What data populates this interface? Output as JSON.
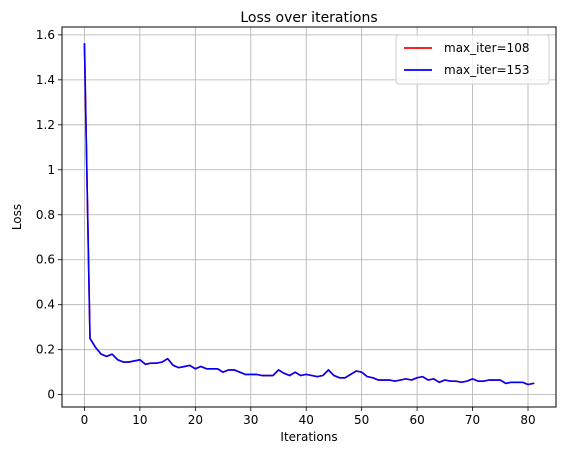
{
  "chart_data": {
    "type": "line",
    "title": "Loss over iterations",
    "xlabel": "Iterations",
    "ylabel": "Loss",
    "xlim": [
      -4.05,
      85.05
    ],
    "ylim": [
      -0.055,
      1.635
    ],
    "xticks": [
      0,
      10,
      20,
      30,
      40,
      50,
      60,
      70,
      80
    ],
    "xtick_labels": [
      "0",
      "10",
      "20",
      "30",
      "40",
      "50",
      "60",
      "70",
      "80"
    ],
    "yticks": [
      0,
      0.2,
      0.4,
      0.6,
      0.8,
      1.0,
      1.2,
      1.4,
      1.6
    ],
    "ytick_labels": [
      "0",
      "0.2",
      "0.4",
      "0.6",
      "0.8",
      "1",
      "1.2",
      "1.4",
      "1.6"
    ],
    "grid": true,
    "legend_position": "top-right",
    "series": [
      {
        "name": "max_iter=108",
        "color": "#ff0000",
        "x": [
          0,
          1,
          2,
          3,
          4,
          5,
          6,
          7,
          8,
          9,
          10,
          11,
          12,
          13,
          14,
          15,
          16,
          17,
          18,
          19,
          20,
          21,
          22,
          23,
          24,
          25,
          26,
          27,
          28,
          29,
          30,
          31,
          32,
          33,
          34,
          35,
          36,
          37,
          38,
          39,
          40,
          41,
          42,
          43,
          44,
          45,
          46,
          47,
          48,
          49,
          50,
          51,
          52,
          53,
          54,
          55,
          56,
          57,
          58,
          59,
          60,
          61,
          62,
          63,
          64,
          65,
          66,
          67,
          68,
          69,
          70,
          71,
          72,
          73,
          74,
          75,
          76,
          77,
          78,
          79,
          80,
          81
        ],
        "y": [
          1.56,
          0.25,
          0.21,
          0.18,
          0.17,
          0.18,
          0.155,
          0.145,
          0.145,
          0.15,
          0.155,
          0.135,
          0.14,
          0.14,
          0.145,
          0.16,
          0.13,
          0.12,
          0.125,
          0.13,
          0.115,
          0.125,
          0.115,
          0.115,
          0.115,
          0.1,
          0.11,
          0.11,
          0.1,
          0.09,
          0.09,
          0.09,
          0.085,
          0.085,
          0.085,
          0.11,
          0.095,
          0.085,
          0.1,
          0.085,
          0.09,
          0.085,
          0.08,
          0.085,
          0.11,
          0.085,
          0.075,
          0.075,
          0.09,
          0.105,
          0.1,
          0.08,
          0.075,
          0.065,
          0.065,
          0.065,
          0.06,
          0.065,
          0.07,
          0.065,
          0.075,
          0.08,
          0.065,
          0.07,
          0.055,
          0.065,
          0.06,
          0.06,
          0.055,
          0.06,
          0.07,
          0.06,
          0.06,
          0.065,
          0.065,
          0.065,
          0.05,
          0.055,
          0.055,
          0.055,
          0.045,
          0.05
        ]
      },
      {
        "name": "max_iter=153",
        "color": "#0000ff",
        "x": [
          0,
          1,
          2,
          3,
          4,
          5,
          6,
          7,
          8,
          9,
          10,
          11,
          12,
          13,
          14,
          15,
          16,
          17,
          18,
          19,
          20,
          21,
          22,
          23,
          24,
          25,
          26,
          27,
          28,
          29,
          30,
          31,
          32,
          33,
          34,
          35,
          36,
          37,
          38,
          39,
          40,
          41,
          42,
          43,
          44,
          45,
          46,
          47,
          48,
          49,
          50,
          51,
          52,
          53,
          54,
          55,
          56,
          57,
          58,
          59,
          60,
          61,
          62,
          63,
          64,
          65,
          66,
          67,
          68,
          69,
          70,
          71,
          72,
          73,
          74,
          75,
          76,
          77,
          78,
          79,
          80,
          81
        ],
        "y": [
          1.56,
          0.25,
          0.21,
          0.18,
          0.17,
          0.18,
          0.155,
          0.145,
          0.145,
          0.15,
          0.155,
          0.135,
          0.14,
          0.14,
          0.145,
          0.16,
          0.13,
          0.12,
          0.125,
          0.13,
          0.115,
          0.125,
          0.115,
          0.115,
          0.115,
          0.1,
          0.11,
          0.11,
          0.1,
          0.09,
          0.09,
          0.09,
          0.085,
          0.085,
          0.085,
          0.11,
          0.095,
          0.085,
          0.1,
          0.085,
          0.09,
          0.085,
          0.08,
          0.085,
          0.11,
          0.085,
          0.075,
          0.075,
          0.09,
          0.105,
          0.1,
          0.08,
          0.075,
          0.065,
          0.065,
          0.065,
          0.06,
          0.065,
          0.07,
          0.065,
          0.075,
          0.08,
          0.065,
          0.07,
          0.055,
          0.065,
          0.06,
          0.06,
          0.055,
          0.06,
          0.07,
          0.06,
          0.06,
          0.065,
          0.065,
          0.065,
          0.05,
          0.055,
          0.055,
          0.055,
          0.045,
          0.05
        ]
      }
    ]
  }
}
